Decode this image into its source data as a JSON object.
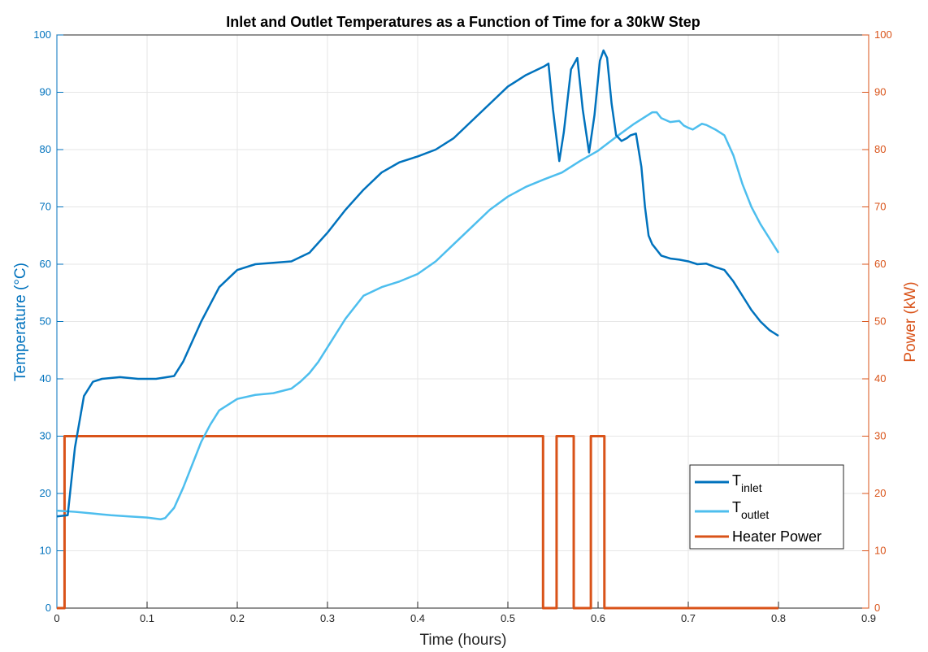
{
  "chart_data": {
    "type": "line",
    "title": "Inlet and Outlet Temperatures as a Function of Time for a 30kW Step",
    "xlabel": "Time (hours)",
    "ylabel_left": "Temperature (°C)",
    "ylabel_right": "Power (kW)",
    "xlim": [
      0,
      0.9
    ],
    "ylim_left": [
      0,
      100
    ],
    "ylim_right": [
      0,
      100
    ],
    "x_ticks": [
      "0",
      "0.1",
      "0.2",
      "0.3",
      "0.4",
      "0.5",
      "0.6",
      "0.7",
      "0.8",
      "0.9"
    ],
    "y_ticks_left": [
      "0",
      "10",
      "20",
      "30",
      "40",
      "50",
      "60",
      "70",
      "80",
      "90",
      "100"
    ],
    "y_ticks_right": [
      "0",
      "10",
      "20",
      "30",
      "40",
      "50",
      "60",
      "70",
      "80",
      "90",
      "100"
    ],
    "grid": true,
    "legend_position": "bottom-right",
    "colors": {
      "left_axis": "#0072BD",
      "right_axis": "#D95319",
      "inlet": "#0072BD",
      "outlet": "#4DBEEE",
      "power": "#D95319",
      "grid": "#e6e6e6"
    },
    "series": [
      {
        "name_main": "T",
        "name_sub": "inlet",
        "axis": "left",
        "color": "#0072BD",
        "x": [
          0,
          0.012,
          0.02,
          0.03,
          0.04,
          0.05,
          0.07,
          0.09,
          0.11,
          0.13,
          0.14,
          0.16,
          0.18,
          0.2,
          0.22,
          0.26,
          0.28,
          0.3,
          0.32,
          0.34,
          0.36,
          0.38,
          0.4,
          0.42,
          0.44,
          0.46,
          0.48,
          0.5,
          0.52,
          0.54,
          0.545,
          0.55,
          0.557,
          0.562,
          0.57,
          0.577,
          0.583,
          0.59,
          0.596,
          0.602,
          0.606,
          0.61,
          0.615,
          0.62,
          0.626,
          0.632,
          0.636,
          0.642,
          0.648,
          0.652,
          0.656,
          0.66,
          0.665,
          0.67,
          0.68,
          0.69,
          0.7,
          0.71,
          0.72,
          0.73,
          0.74,
          0.75,
          0.76,
          0.77,
          0.78,
          0.79,
          0.8
        ],
        "y": [
          16,
          16.2,
          28,
          37,
          39.5,
          40,
          40.3,
          40,
          40,
          40.5,
          43,
          50,
          56,
          59,
          60,
          60.5,
          62,
          65.5,
          69.5,
          73,
          76,
          77.8,
          78.8,
          80,
          82,
          85,
          88,
          91,
          93,
          94.5,
          95,
          87,
          78,
          83,
          94,
          96,
          87,
          79.5,
          86,
          95.5,
          97.3,
          96,
          88,
          82.5,
          81.5,
          82,
          82.5,
          82.8,
          77,
          70,
          65,
          63.5,
          62.5,
          61.5,
          61,
          60.8,
          60.5,
          60,
          60.1,
          59.5,
          59,
          57,
          54.5,
          52,
          50,
          48.5,
          47.5
        ]
      },
      {
        "name_main": "T",
        "name_sub": "outlet",
        "axis": "left",
        "color": "#4DBEEE",
        "x": [
          0,
          0.02,
          0.04,
          0.06,
          0.08,
          0.1,
          0.115,
          0.12,
          0.13,
          0.14,
          0.15,
          0.16,
          0.17,
          0.18,
          0.2,
          0.22,
          0.24,
          0.26,
          0.27,
          0.28,
          0.29,
          0.3,
          0.32,
          0.34,
          0.36,
          0.38,
          0.4,
          0.42,
          0.44,
          0.46,
          0.48,
          0.5,
          0.52,
          0.54,
          0.56,
          0.58,
          0.6,
          0.62,
          0.64,
          0.66,
          0.665,
          0.67,
          0.68,
          0.69,
          0.695,
          0.7,
          0.705,
          0.71,
          0.715,
          0.72,
          0.73,
          0.74,
          0.75,
          0.76,
          0.77,
          0.78,
          0.79,
          0.8
        ],
        "y": [
          17,
          16.8,
          16.5,
          16.2,
          16,
          15.8,
          15.5,
          15.7,
          17.5,
          21,
          25,
          29,
          32,
          34.5,
          36.5,
          37.2,
          37.5,
          38.3,
          39.5,
          41,
          43,
          45.5,
          50.5,
          54.5,
          56,
          57,
          58.3,
          60.5,
          63.5,
          66.5,
          69.5,
          71.8,
          73.5,
          74.8,
          76,
          78,
          79.8,
          82.2,
          84.5,
          86.5,
          86.5,
          85.5,
          84.8,
          85,
          84.2,
          83.8,
          83.5,
          84,
          84.5,
          84.3,
          83.5,
          82.5,
          79,
          74,
          70,
          67,
          64.5,
          62
        ]
      },
      {
        "name": "Heater Power",
        "axis": "right",
        "color": "#D95319",
        "x": [
          0,
          0.0085,
          0.0085,
          0.0095,
          0.0095,
          0.539,
          0.539,
          0.554,
          0.554,
          0.573,
          0.573,
          0.592,
          0.592,
          0.607,
          0.607,
          0.8
        ],
        "y": [
          0,
          0,
          30,
          30,
          30,
          30,
          0,
          0,
          30,
          30,
          0,
          0,
          30,
          30,
          0,
          0
        ]
      }
    ]
  }
}
